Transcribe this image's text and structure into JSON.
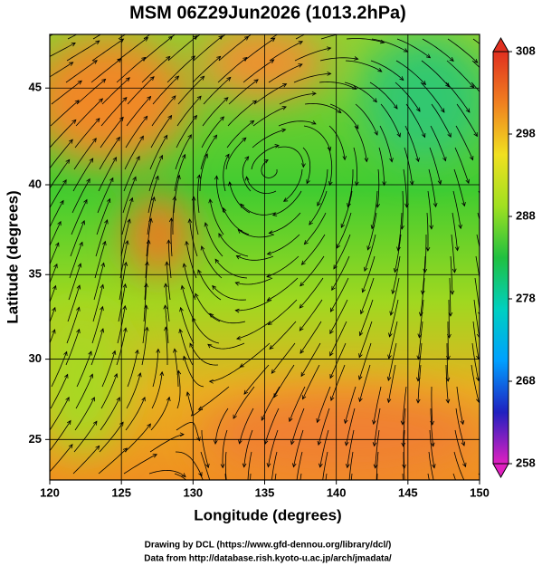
{
  "title": "MSM 06Z29Jun2026 (1013.2hPa)",
  "map": {
    "projection": "mercator",
    "xlabel": "Longitude (degrees)",
    "ylabel": "Latitude  (degrees)",
    "xlim": [
      120,
      150
    ],
    "xticks": [
      120,
      125,
      130,
      135,
      140,
      145,
      150
    ],
    "ylim": [
      22.4,
      47.6
    ],
    "yticks": [
      25,
      30,
      35,
      40,
      45
    ],
    "grid": true
  },
  "colorbar": {
    "lim": [
      258,
      308
    ],
    "ticks": [
      258,
      268,
      278,
      288,
      298,
      308
    ],
    "colors": [
      "#e020c0",
      "#2020c0",
      "#00a0ff",
      "#00d0c0",
      "#20c040",
      "#a0e020",
      "#f0e020",
      "#f08020",
      "#e03020"
    ]
  },
  "footer": [
    "Drawing by DCL (https://www.gfd-dennou.org/library/dcl/)",
    "Data from http://database.rish.kyoto-u.ac.jp/arch/jmadata/"
  ]
}
